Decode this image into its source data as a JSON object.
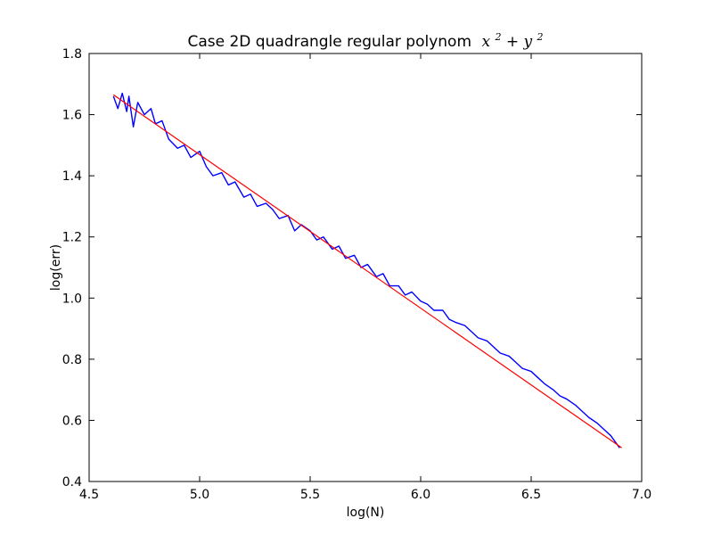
{
  "chart_data": {
    "type": "line",
    "title": "Case 2D quadrangle regular polynom",
    "title_math": {
      "base1": "x",
      "exp1": "2",
      "op": " + ",
      "base2": "y",
      "exp2": "2"
    },
    "xlabel": "log(N)",
    "ylabel": "log(err)",
    "xlim": [
      4.5,
      7.0
    ],
    "ylim": [
      0.4,
      1.8
    ],
    "xticks": [
      4.5,
      5.0,
      5.5,
      6.0,
      6.5,
      7.0
    ],
    "yticks": [
      0.4,
      0.6,
      0.8,
      1.0,
      1.2,
      1.4,
      1.6,
      1.8
    ],
    "xtick_labels": [
      "4.5",
      "5.0",
      "5.5",
      "6.0",
      "6.5",
      "7.0"
    ],
    "ytick_labels": [
      "0.4",
      "0.6",
      "0.8",
      "1.0",
      "1.2",
      "1.4",
      "1.6",
      "1.8"
    ],
    "grid": false,
    "series": [
      {
        "color": "#0000ff",
        "style": "noisy-line",
        "x": [
          4.61,
          4.63,
          4.65,
          4.67,
          4.68,
          4.7,
          4.72,
          4.75,
          4.78,
          4.8,
          4.83,
          4.86,
          4.9,
          4.93,
          4.96,
          5.0,
          5.03,
          5.06,
          5.1,
          5.13,
          5.16,
          5.2,
          5.23,
          5.26,
          5.3,
          5.33,
          5.36,
          5.4,
          5.43,
          5.46,
          5.5,
          5.53,
          5.56,
          5.6,
          5.63,
          5.66,
          5.7,
          5.73,
          5.76,
          5.8,
          5.83,
          5.86,
          5.9,
          5.93,
          5.96,
          6.0,
          6.03,
          6.06,
          6.1,
          6.13,
          6.16,
          6.2,
          6.23,
          6.26,
          6.3,
          6.33,
          6.36,
          6.4,
          6.43,
          6.46,
          6.5,
          6.53,
          6.56,
          6.6,
          6.63,
          6.66,
          6.7,
          6.73,
          6.76,
          6.8,
          6.83,
          6.86,
          6.9
        ],
        "y": [
          1.66,
          1.62,
          1.67,
          1.61,
          1.66,
          1.56,
          1.64,
          1.6,
          1.62,
          1.57,
          1.58,
          1.52,
          1.49,
          1.5,
          1.46,
          1.48,
          1.43,
          1.4,
          1.41,
          1.37,
          1.38,
          1.33,
          1.34,
          1.3,
          1.31,
          1.29,
          1.26,
          1.27,
          1.22,
          1.24,
          1.22,
          1.19,
          1.2,
          1.16,
          1.17,
          1.13,
          1.14,
          1.1,
          1.11,
          1.07,
          1.08,
          1.04,
          1.04,
          1.01,
          1.02,
          0.99,
          0.98,
          0.96,
          0.96,
          0.93,
          0.92,
          0.91,
          0.89,
          0.87,
          0.86,
          0.84,
          0.82,
          0.81,
          0.79,
          0.77,
          0.76,
          0.74,
          0.72,
          0.7,
          0.68,
          0.67,
          0.65,
          0.63,
          0.61,
          0.59,
          0.57,
          0.55,
          0.51
        ]
      },
      {
        "color": "#ff0000",
        "style": "fit-line",
        "x": [
          4.61,
          6.91
        ],
        "y": [
          1.665,
          0.51
        ]
      }
    ]
  }
}
